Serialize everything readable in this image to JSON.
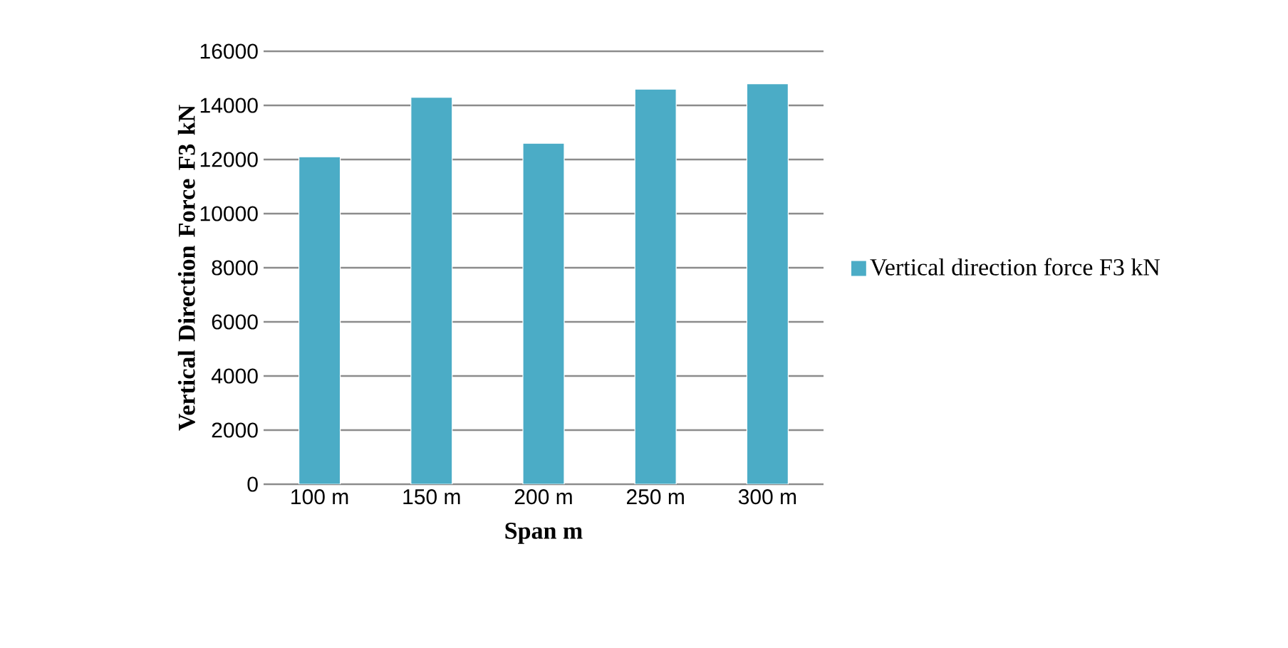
{
  "chart_data": {
    "type": "bar",
    "xlabel": "Span m",
    "ylabel": "Vertical Direction Force F3 kN",
    "categories": [
      "100 m",
      "150 m",
      "200 m",
      "250 m",
      "300 m"
    ],
    "series": [
      {
        "name": "Vertical direction force F3 kN",
        "color": "#4bacc6",
        "values": [
          12100,
          14300,
          12600,
          14600,
          14800
        ]
      }
    ],
    "ylim": [
      0,
      16000
    ],
    "yticks": [
      0,
      2000,
      4000,
      6000,
      8000,
      10000,
      12000,
      14000,
      16000
    ],
    "grid": "y",
    "legend": "right"
  }
}
